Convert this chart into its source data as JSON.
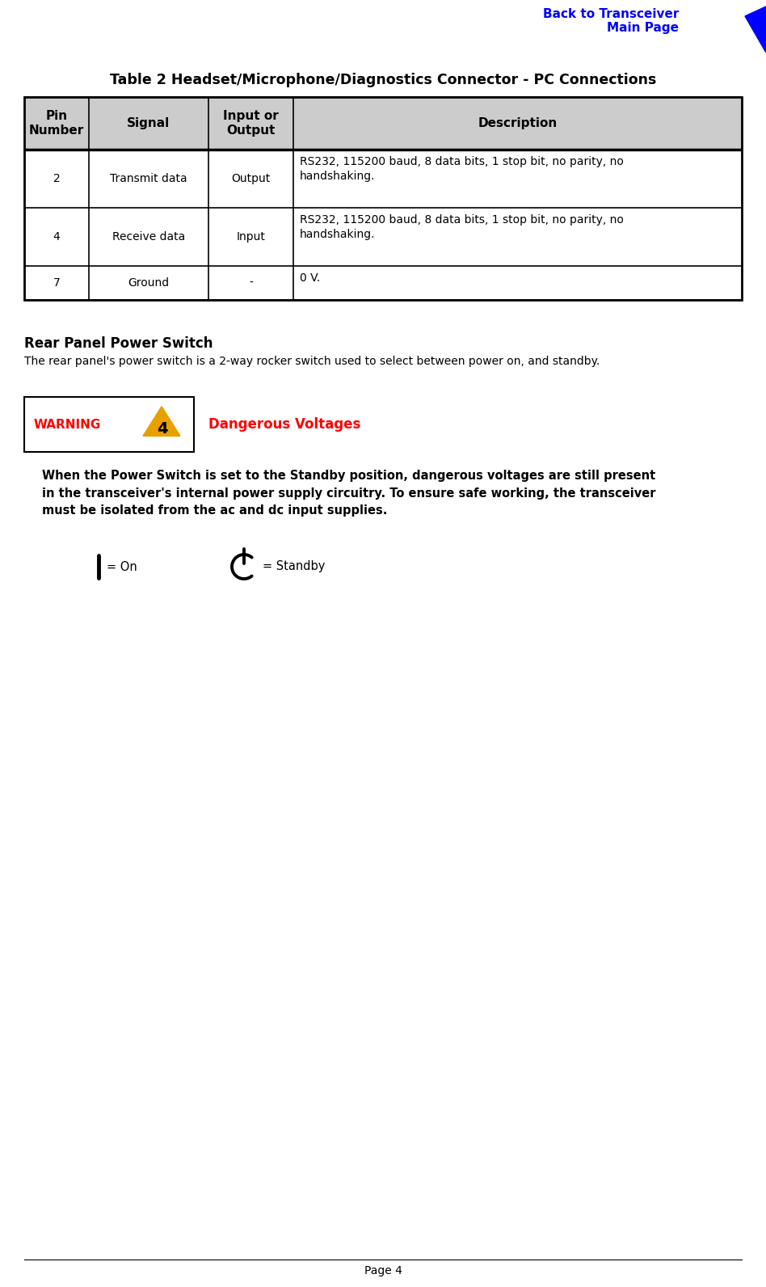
{
  "page_title": "Back to Transceiver\nMain Page",
  "table_title": "Table 2 Headset/Microphone/Diagnostics Connector - PC Connections",
  "table_headers": [
    "Pin\nNumber",
    "Signal",
    "Input or\nOutput",
    "Description"
  ],
  "table_rows": [
    [
      "2",
      "Transmit data",
      "Output",
      "RS232, 115200 baud, 8 data bits, 1 stop bit, no parity, no\nhandshaking."
    ],
    [
      "4",
      "Receive data",
      "Input",
      "RS232, 115200 baud, 8 data bits, 1 stop bit, no parity, no\nhandshaking."
    ],
    [
      "7",
      "Ground",
      "-",
      "0 V."
    ]
  ],
  "section_title": "Rear Panel Power Switch",
  "section_body": "The rear panel's power switch is a 2-way rocker switch used to select between power on, and standby.",
  "warning_label": "WARNING",
  "warning_text": "Dangerous Voltages",
  "warning_body": "When the Power Switch is set to the Standby position, dangerous voltages are still present\nin the transceiver's internal power supply circuitry. To ensure safe working, the transceiver\nmust be isolated from the ac and dc input supplies.",
  "on_label": "= On",
  "standby_label": "= Standby",
  "page_number": "Page 4",
  "blue_color": "#0000FF",
  "red_color": "#FF0000",
  "header_bg": "#CCCCCC",
  "table_border": "#000000",
  "warning_border": "#000000"
}
